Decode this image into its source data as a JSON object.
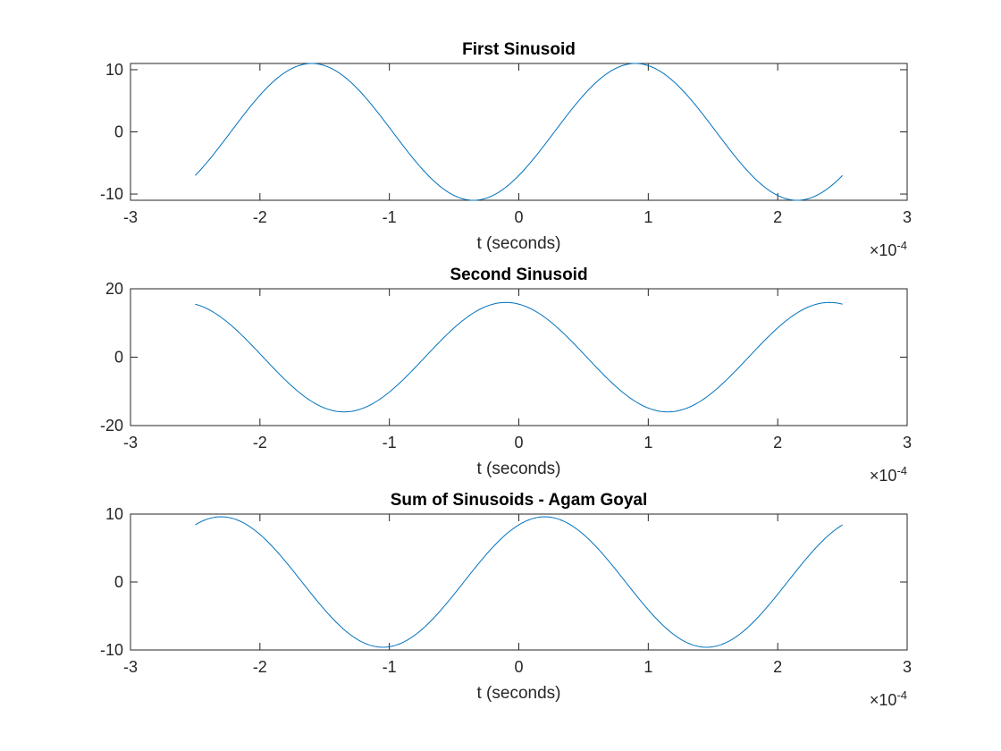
{
  "chart_data": [
    {
      "type": "line",
      "title": "First Sinusoid",
      "xlabel": "t (seconds)",
      "ylabel": "",
      "x_exponent_label": "×10",
      "x_exponent_power": "-4",
      "xlim": [
        -3,
        3
      ],
      "ylim": [
        -11,
        11
      ],
      "xticks": [
        -3,
        -2,
        -1,
        0,
        1,
        2,
        3
      ],
      "xtick_labels": [
        "-3",
        "-2",
        "-1",
        "0",
        "1",
        "2",
        "3"
      ],
      "yticks": [
        -10,
        0,
        10
      ],
      "ytick_labels": [
        "-10",
        "0",
        "10"
      ],
      "grid": false,
      "color": "#0072BD",
      "series": [
        {
          "t_range": [
            -2.5,
            2.5
          ],
          "amplitude": 11,
          "period": 2.5,
          "peak_at": -1.6
        }
      ]
    },
    {
      "type": "line",
      "title": "Second Sinusoid",
      "xlabel": "t (seconds)",
      "ylabel": "",
      "x_exponent_label": "×10",
      "x_exponent_power": "-4",
      "xlim": [
        -3,
        3
      ],
      "ylim": [
        -20,
        20
      ],
      "xticks": [
        -3,
        -2,
        -1,
        0,
        1,
        2,
        3
      ],
      "xtick_labels": [
        "-3",
        "-2",
        "-1",
        "0",
        "1",
        "2",
        "3"
      ],
      "yticks": [
        -20,
        0,
        20
      ],
      "ytick_labels": [
        "-20",
        "0",
        "20"
      ],
      "grid": false,
      "color": "#0072BD",
      "series": [
        {
          "t_range": [
            -2.5,
            2.5
          ],
          "amplitude": 16,
          "period": 2.5,
          "peak_at": -0.1
        }
      ]
    },
    {
      "type": "line",
      "title": "Sum of Sinusoids - Agam Goyal",
      "xlabel": "t (seconds)",
      "ylabel": "",
      "x_exponent_label": "×10",
      "x_exponent_power": "-4",
      "xlim": [
        -3,
        3
      ],
      "ylim": [
        -10,
        10
      ],
      "xticks": [
        -3,
        -2,
        -1,
        0,
        1,
        2,
        3
      ],
      "xtick_labels": [
        "-3",
        "-2",
        "-1",
        "0",
        "1",
        "2",
        "3"
      ],
      "yticks": [
        -10,
        0,
        10
      ],
      "ytick_labels": [
        "-10",
        "0",
        "10"
      ],
      "grid": false,
      "color": "#0072BD",
      "series": [
        {
          "t_range": [
            -2.5,
            2.5
          ],
          "amplitude": 9.6,
          "period": 2.5,
          "peak_at": 0.2
        }
      ]
    }
  ]
}
